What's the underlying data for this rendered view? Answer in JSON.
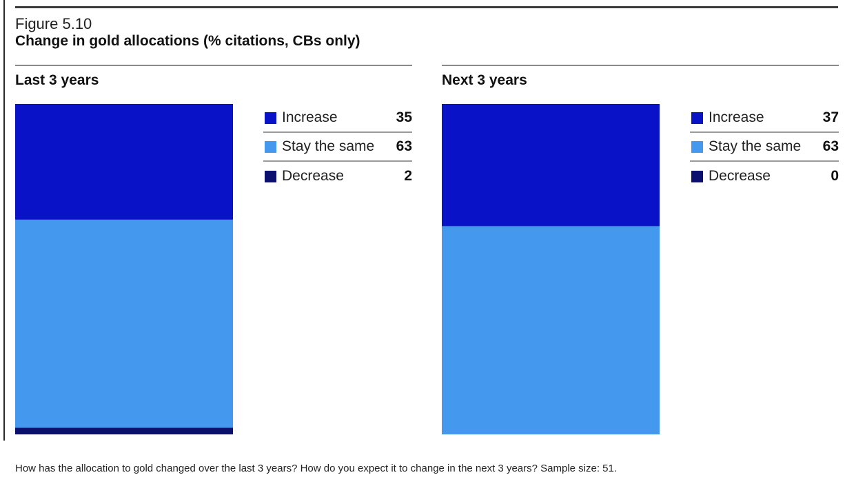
{
  "figure": {
    "number": "Figure 5.10",
    "title": "Change in gold allocations (% citations, CBs only)",
    "footnote": "How has the allocation to gold changed over the last 3 years? How do you expect it to change in the next 3 years? Sample size: 51."
  },
  "chart_data": [
    {
      "type": "bar",
      "stacked": true,
      "title": "Last 3 years",
      "categories": [
        "Increase",
        "Stay the same",
        "Decrease"
      ],
      "values": [
        35,
        63,
        2
      ],
      "colors": [
        "#0a12c8",
        "#4499ee",
        "#0b0f6e"
      ],
      "ylim": [
        0,
        100
      ],
      "legend_position": "right"
    },
    {
      "type": "bar",
      "stacked": true,
      "title": "Next 3 years",
      "categories": [
        "Increase",
        "Stay the same",
        "Decrease"
      ],
      "values": [
        37,
        63,
        0
      ],
      "colors": [
        "#0a12c8",
        "#4499ee",
        "#0b0f6e"
      ],
      "ylim": [
        0,
        100
      ],
      "legend_position": "right"
    }
  ]
}
